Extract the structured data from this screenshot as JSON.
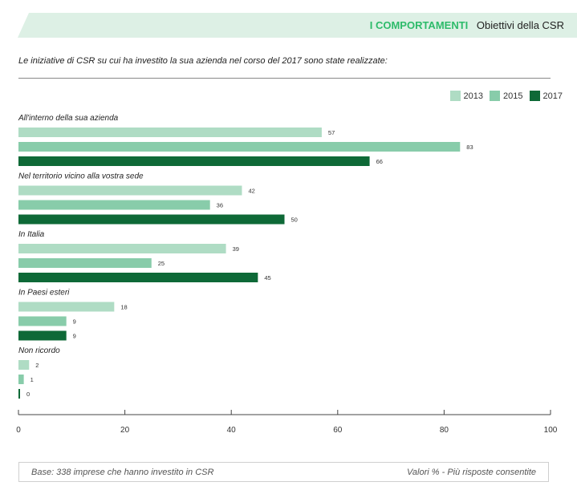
{
  "header": {
    "section": "I COMPORTAMENTI",
    "topic": "Obiettivi della CSR",
    "background_color": "#ddf0e5",
    "section_color": "#2dbb6a"
  },
  "question": "Le iniziative di CSR su cui ha investito la sua azienda nel corso del 2017 sono state realizzate:",
  "footer": {
    "base": "Base: 338 imprese che hanno investito in CSR",
    "note": "Valori % - Più risposte consentite"
  },
  "chart_data": {
    "type": "bar",
    "orientation": "horizontal",
    "categories": [
      "All'interno della sua azienda",
      "Nel territorio vicino alla vostra sede",
      "In Italia",
      "In Paesi esteri",
      "Non ricordo"
    ],
    "series": [
      {
        "name": "2013",
        "color": "#afdcc4",
        "values": [
          57,
          42,
          39,
          18,
          2
        ]
      },
      {
        "name": "2015",
        "color": "#88ccaa",
        "values": [
          83,
          36,
          25,
          9,
          1
        ]
      },
      {
        "name": "2017",
        "color": "#0e6937",
        "values": [
          66,
          50,
          45,
          9,
          0
        ]
      }
    ],
    "xlim": [
      0,
      100
    ],
    "xticks": [
      0,
      20,
      40,
      60,
      80,
      100
    ],
    "xlabel": "",
    "ylabel": "",
    "legend_position": "top-right",
    "grid": false
  }
}
